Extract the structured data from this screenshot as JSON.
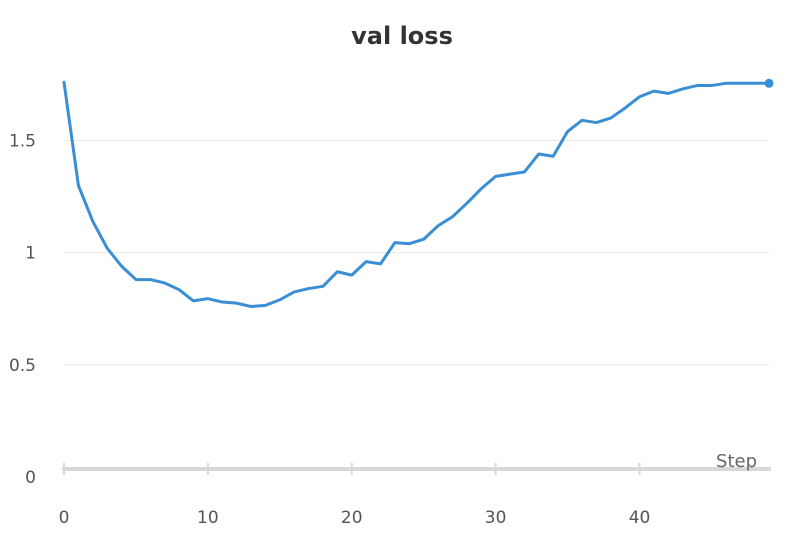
{
  "chart_data": {
    "type": "line",
    "title": "val loss",
    "xlabel": "Step",
    "ylabel": "",
    "xlim": [
      0,
      49
    ],
    "ylim": [
      0,
      1.85
    ],
    "x_ticks": [
      {
        "value": 0,
        "label": "0"
      },
      {
        "value": 10,
        "label": "10"
      },
      {
        "value": 20,
        "label": "20"
      },
      {
        "value": 30,
        "label": "30"
      },
      {
        "value": 40,
        "label": "40"
      }
    ],
    "y_ticks": [
      {
        "value": 0,
        "label": "0"
      },
      {
        "value": 0.5,
        "label": "0.5"
      },
      {
        "value": 1,
        "label": "1"
      },
      {
        "value": 1.5,
        "label": "1.5"
      }
    ],
    "grid": true,
    "legend": "none",
    "series": [
      {
        "color": "#3a8ed4",
        "x": [
          0,
          1,
          2,
          3,
          4,
          5,
          6,
          7,
          8,
          9,
          10,
          11,
          12,
          13,
          14,
          15,
          16,
          17,
          18,
          19,
          20,
          21,
          22,
          23,
          24,
          25,
          26,
          27,
          28,
          29,
          30,
          31,
          32,
          33,
          34,
          35,
          36,
          37,
          38,
          39,
          40,
          41,
          42,
          43,
          44,
          45,
          46,
          47,
          48,
          49
        ],
        "y": [
          1.76,
          1.3,
          1.14,
          1.02,
          0.94,
          0.88,
          0.88,
          0.865,
          0.835,
          0.785,
          0.795,
          0.78,
          0.775,
          0.76,
          0.765,
          0.79,
          0.825,
          0.84,
          0.85,
          0.915,
          0.9,
          0.96,
          0.95,
          1.045,
          1.04,
          1.06,
          1.12,
          1.16,
          1.22,
          1.285,
          1.34,
          1.35,
          1.36,
          1.44,
          1.43,
          1.54,
          1.59,
          1.58,
          1.6,
          1.645,
          1.695,
          1.72,
          1.71,
          1.73,
          1.745,
          1.745,
          1.755,
          1.755,
          1.755,
          1.755
        ],
        "end_marker": true
      }
    ]
  }
}
